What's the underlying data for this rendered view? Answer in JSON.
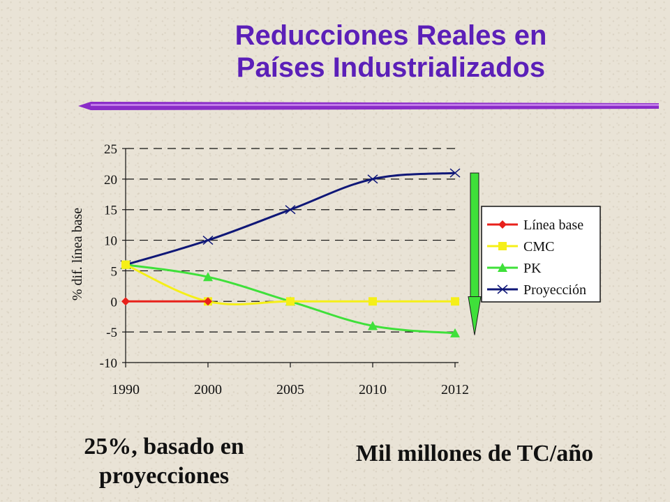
{
  "slide": {
    "title_line1": "Reducciones Reales en",
    "title_line2": "Países Industrializados",
    "caption_left": "25%, basado en proyecciones",
    "caption_right": "Mil millones de TC/año",
    "title_color": "#5b1fb8",
    "rule_color": "#8a2cc8"
  },
  "chart_data": {
    "type": "line",
    "ylabel": "% dif. línea base",
    "xlabel": "",
    "title": "",
    "categories": [
      "1990",
      "2000",
      "2005",
      "2010",
      "2012"
    ],
    "ylim": [
      -10,
      25
    ],
    "yticks": [
      -10,
      -5,
      0,
      5,
      10,
      15,
      20,
      25
    ],
    "grid": "dashed horizontal",
    "legend_position": "right",
    "series": [
      {
        "name": "Línea base",
        "color": "#e8211b",
        "marker": "diamond",
        "values": [
          0,
          0,
          null,
          null,
          null
        ]
      },
      {
        "name": "CMC",
        "color": "#f5ef18",
        "marker": "square",
        "values": [
          6,
          0,
          0,
          0,
          0
        ]
      },
      {
        "name": "PK",
        "color": "#3fe03a",
        "marker": "triangle",
        "values": [
          6,
          4,
          0,
          -4,
          -5.2
        ]
      },
      {
        "name": "Proyección",
        "color": "#0f1777",
        "marker": "x",
        "values": [
          6,
          10,
          15,
          20,
          21
        ]
      }
    ],
    "annotation_arrow": {
      "from_value": 21,
      "to_value": -5.5,
      "color": "#3fe03a",
      "direction": "down"
    }
  }
}
